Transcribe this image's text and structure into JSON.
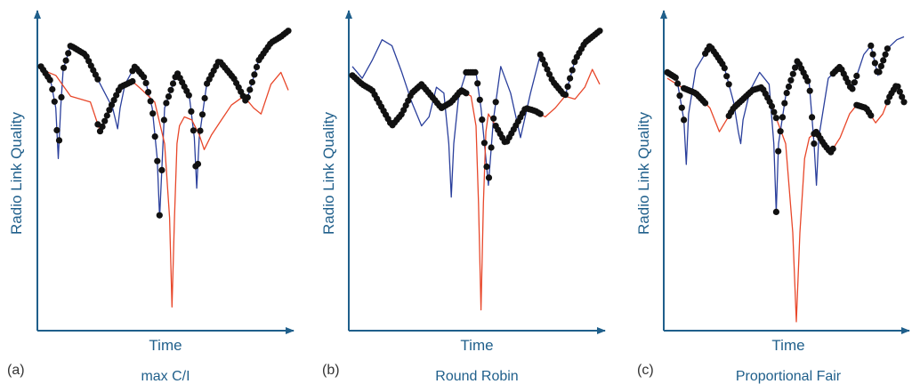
{
  "colors": {
    "axis": "#1f5f8b",
    "user_blue": "#2a3f9c",
    "user_red": "#e8472a",
    "scheduled": "#111111",
    "label_text": "#1f5f8b",
    "letter_text": "#333333"
  },
  "chart_data": [
    {
      "type": "line",
      "panel_letter": "(a)",
      "caption": "max C/I",
      "xlabel": "Time",
      "ylabel": "Radio Link Quality",
      "xlim": [
        0,
        1
      ],
      "ylim": [
        0,
        1
      ],
      "grid": false,
      "series": [
        {
          "key": "user1",
          "x": [
            0.0,
            0.04,
            0.06,
            0.07,
            0.08,
            0.09,
            0.12,
            0.18,
            0.24,
            0.29,
            0.31,
            0.32,
            0.34,
            0.38,
            0.42,
            0.45,
            0.47,
            0.48,
            0.5,
            0.55,
            0.6,
            0.62,
            0.63,
            0.64,
            0.67,
            0.72,
            0.78,
            0.83,
            0.88,
            0.93,
            0.97,
            1.0
          ],
          "y": [
            0.86,
            0.81,
            0.72,
            0.55,
            0.72,
            0.85,
            0.93,
            0.9,
            0.8,
            0.72,
            0.65,
            0.72,
            0.8,
            0.86,
            0.82,
            0.72,
            0.55,
            0.35,
            0.72,
            0.84,
            0.76,
            0.62,
            0.45,
            0.62,
            0.8,
            0.88,
            0.82,
            0.74,
            0.88,
            0.94,
            0.96,
            0.98
          ]
        },
        {
          "key": "user2",
          "x": [
            0.0,
            0.06,
            0.12,
            0.2,
            0.24,
            0.28,
            0.32,
            0.37,
            0.41,
            0.46,
            0.5,
            0.52,
            0.53,
            0.54,
            0.55,
            0.56,
            0.58,
            0.61,
            0.64,
            0.66,
            0.69,
            0.73,
            0.77,
            0.82,
            0.86,
            0.89,
            0.93,
            0.97,
            1.0
          ],
          "y": [
            0.85,
            0.83,
            0.76,
            0.74,
            0.64,
            0.72,
            0.79,
            0.81,
            0.78,
            0.74,
            0.6,
            0.35,
            0.05,
            0.35,
            0.6,
            0.66,
            0.69,
            0.68,
            0.63,
            0.58,
            0.63,
            0.68,
            0.73,
            0.76,
            0.72,
            0.7,
            0.8,
            0.84,
            0.78
          ]
        }
      ]
    },
    {
      "type": "line",
      "panel_letter": "(b)",
      "caption": "Round Robin",
      "xlabel": "Time",
      "ylabel": "Radio Link Quality",
      "xlim": [
        0,
        1
      ],
      "ylim": [
        0,
        1
      ],
      "grid": false,
      "series": [
        {
          "key": "user1",
          "x": [
            0.0,
            0.04,
            0.08,
            0.12,
            0.16,
            0.2,
            0.24,
            0.28,
            0.31,
            0.34,
            0.37,
            0.39,
            0.4,
            0.41,
            0.43,
            0.46,
            0.5,
            0.52,
            0.54,
            0.55,
            0.57,
            0.6,
            0.64,
            0.68,
            0.72,
            0.76,
            0.81,
            0.86,
            0.9,
            0.94,
            0.97,
            1.0
          ],
          "y": [
            0.86,
            0.82,
            0.88,
            0.95,
            0.93,
            0.84,
            0.74,
            0.66,
            0.69,
            0.79,
            0.77,
            0.6,
            0.42,
            0.6,
            0.76,
            0.84,
            0.84,
            0.72,
            0.55,
            0.46,
            0.68,
            0.86,
            0.77,
            0.62,
            0.77,
            0.9,
            0.81,
            0.76,
            0.88,
            0.94,
            0.96,
            0.98
          ]
        },
        {
          "key": "user2",
          "x": [
            0.0,
            0.04,
            0.08,
            0.12,
            0.16,
            0.2,
            0.24,
            0.28,
            0.32,
            0.36,
            0.4,
            0.44,
            0.48,
            0.5,
            0.51,
            0.52,
            0.53,
            0.54,
            0.55,
            0.58,
            0.62,
            0.66,
            0.7,
            0.74,
            0.78,
            0.82,
            0.86,
            0.9,
            0.94,
            0.97,
            1.0
          ],
          "y": [
            0.83,
            0.8,
            0.78,
            0.72,
            0.66,
            0.7,
            0.77,
            0.8,
            0.76,
            0.72,
            0.74,
            0.78,
            0.76,
            0.66,
            0.4,
            0.04,
            0.4,
            0.64,
            0.7,
            0.66,
            0.6,
            0.66,
            0.72,
            0.71,
            0.69,
            0.72,
            0.76,
            0.75,
            0.79,
            0.85,
            0.8
          ]
        }
      ]
    },
    {
      "type": "line",
      "panel_letter": "(c)",
      "caption": "Proportional Fair",
      "xlabel": "Time",
      "ylabel": "Radio Link Quality",
      "xlim": [
        0,
        1
      ],
      "ylim": [
        0,
        1
      ],
      "grid": false,
      "series": [
        {
          "key": "user1",
          "x": [
            0.0,
            0.04,
            0.07,
            0.08,
            0.09,
            0.12,
            0.18,
            0.24,
            0.28,
            0.3,
            0.31,
            0.32,
            0.35,
            0.39,
            0.43,
            0.45,
            0.46,
            0.47,
            0.5,
            0.55,
            0.6,
            0.62,
            0.63,
            0.64,
            0.68,
            0.73,
            0.78,
            0.83,
            0.86,
            0.89,
            0.93,
            0.97,
            1.0
          ],
          "y": [
            0.84,
            0.82,
            0.68,
            0.53,
            0.7,
            0.85,
            0.93,
            0.86,
            0.74,
            0.64,
            0.6,
            0.68,
            0.78,
            0.84,
            0.8,
            0.6,
            0.37,
            0.6,
            0.76,
            0.88,
            0.8,
            0.6,
            0.46,
            0.62,
            0.82,
            0.86,
            0.78,
            0.9,
            0.93,
            0.83,
            0.92,
            0.95,
            0.96
          ]
        },
        {
          "key": "user2",
          "x": [
            0.0,
            0.06,
            0.12,
            0.18,
            0.22,
            0.25,
            0.28,
            0.32,
            0.36,
            0.4,
            0.44,
            0.5,
            0.53,
            0.545,
            0.56,
            0.58,
            0.6,
            0.63,
            0.66,
            0.69,
            0.73,
            0.77,
            0.8,
            0.84,
            0.88,
            0.91,
            0.94,
            0.97,
            1.0
          ],
          "y": [
            0.82,
            0.79,
            0.77,
            0.72,
            0.64,
            0.68,
            0.72,
            0.75,
            0.78,
            0.79,
            0.73,
            0.6,
            0.3,
            0.0,
            0.3,
            0.55,
            0.62,
            0.64,
            0.6,
            0.57,
            0.62,
            0.7,
            0.73,
            0.72,
            0.67,
            0.7,
            0.76,
            0.8,
            0.74
          ]
        }
      ]
    }
  ],
  "scheduled_segments": [
    [
      {
        "user": "user1",
        "from": 0.0,
        "to": 0.23
      },
      {
        "user": "user2",
        "from": 0.23,
        "to": 0.37
      },
      {
        "user": "user1",
        "from": 0.37,
        "to": 1.0
      }
    ],
    [
      {
        "user": "user2",
        "from": 0.0,
        "to": 0.46
      },
      {
        "user": "user1",
        "from": 0.46,
        "to": 0.58
      },
      {
        "user": "user2",
        "from": 0.58,
        "to": 0.76
      },
      {
        "user": "user1",
        "from": 0.76,
        "to": 1.0
      }
    ],
    [
      {
        "user": "user1",
        "from": 0.0,
        "to": 0.07
      },
      {
        "user": "user2",
        "from": 0.07,
        "to": 0.16
      },
      {
        "user": "user1",
        "from": 0.16,
        "to": 0.26
      },
      {
        "user": "user2",
        "from": 0.26,
        "to": 0.46
      },
      {
        "user": "user1",
        "from": 0.46,
        "to": 0.62
      },
      {
        "user": "user2",
        "from": 0.62,
        "to": 0.7
      },
      {
        "user": "user1",
        "from": 0.7,
        "to": 0.8
      },
      {
        "user": "user2",
        "from": 0.8,
        "to": 0.86
      },
      {
        "user": "user1",
        "from": 0.86,
        "to": 0.93
      },
      {
        "user": "user2",
        "from": 0.93,
        "to": 1.0
      }
    ]
  ]
}
